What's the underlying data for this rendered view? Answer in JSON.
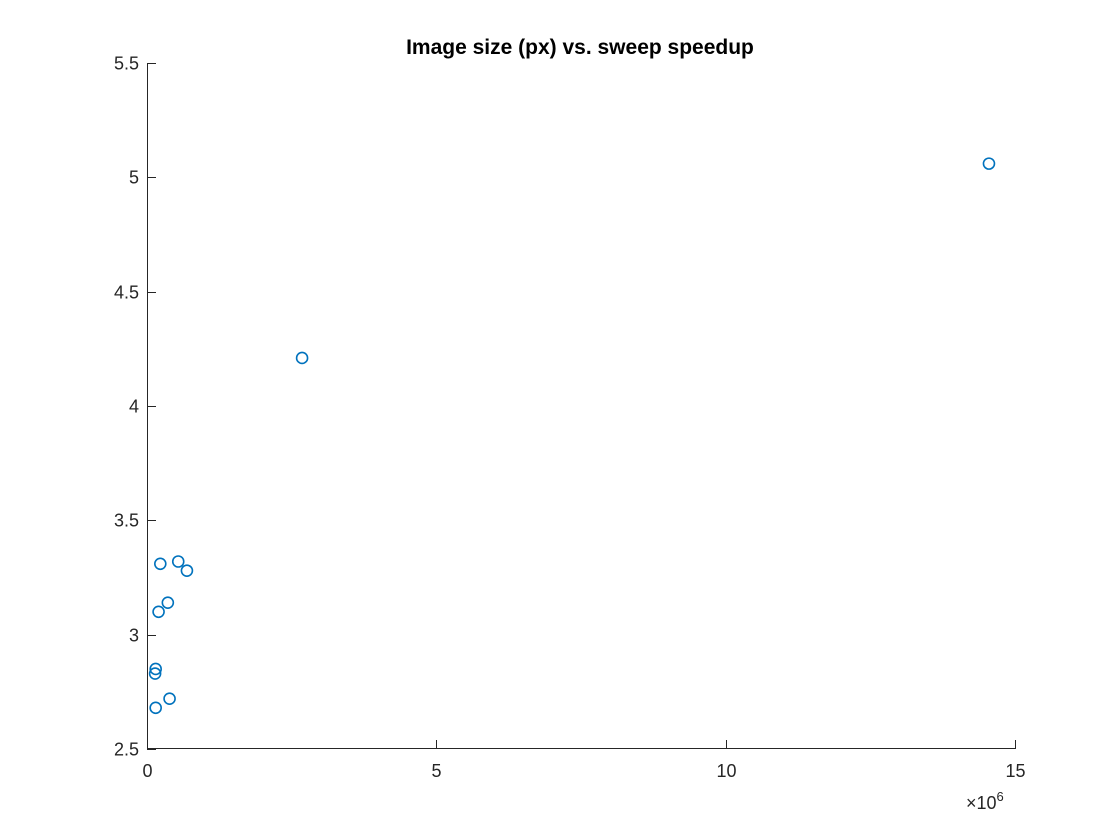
{
  "chart_data": {
    "type": "scatter",
    "title": "Image size (px) vs. sweep speedup",
    "xlabel": "",
    "ylabel": "",
    "xlim": [
      0,
      15000000
    ],
    "ylim": [
      2.5,
      5.5
    ],
    "x_ticks": [
      0,
      5000000,
      10000000,
      15000000
    ],
    "x_tick_labels": [
      "0",
      "5",
      "10",
      "15"
    ],
    "x_exponent_label": "10",
    "x_exponent_power": "6",
    "y_ticks": [
      2.5,
      3,
      3.5,
      4,
      4.5,
      5,
      5.5
    ],
    "y_tick_labels": [
      "2.5",
      "3",
      "3.5",
      "4",
      "4.5",
      "5",
      "5.5"
    ],
    "grid": false,
    "marker": "circle",
    "series": [
      {
        "color": "#0072BD",
        "points": [
          {
            "x": 14550000,
            "y": 5.06
          },
          {
            "x": 2680000,
            "y": 4.21
          },
          {
            "x": 540000,
            "y": 3.32
          },
          {
            "x": 230000,
            "y": 3.31
          },
          {
            "x": 690000,
            "y": 3.28
          },
          {
            "x": 360000,
            "y": 3.14
          },
          {
            "x": 200000,
            "y": 3.1
          },
          {
            "x": 150000,
            "y": 2.85
          },
          {
            "x": 140000,
            "y": 2.83
          },
          {
            "x": 390000,
            "y": 2.72
          },
          {
            "x": 150000,
            "y": 2.68
          }
        ]
      }
    ]
  }
}
